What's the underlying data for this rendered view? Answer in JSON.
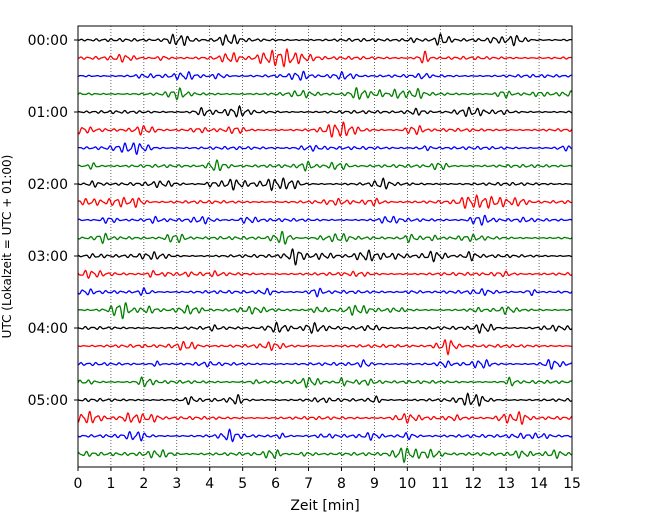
{
  "chart_data": {
    "type": "line",
    "title": "",
    "xlabel": "Zeit  [min]",
    "ylabel": "UTC (Lokalzeit = UTC + 01:00)",
    "xlim": [
      0,
      15
    ],
    "x_ticks": [
      0,
      1,
      2,
      3,
      4,
      5,
      6,
      7,
      8,
      9,
      10,
      11,
      12,
      13,
      14,
      15
    ],
    "x_tick_labels": [
      "0",
      "1",
      "2",
      "3",
      "4",
      "5",
      "6",
      "7",
      "8",
      "9",
      "10",
      "11",
      "12",
      "13",
      "14",
      "15"
    ],
    "y_tick_labels": [
      "00:00",
      "01:00",
      "02:00",
      "03:00",
      "04:00",
      "05:00"
    ],
    "grid": "vertical dotted",
    "trace_interval_minutes": 15,
    "trace_count": 24,
    "trace_colors": [
      "#000000",
      "#ff0000",
      "#0000ff",
      "#008000"
    ],
    "trace_start_times": [
      "00:00",
      "00:15",
      "00:30",
      "00:45",
      "01:00",
      "01:15",
      "01:30",
      "01:45",
      "02:00",
      "02:15",
      "02:30",
      "02:45",
      "03:00",
      "03:15",
      "03:30",
      "03:45",
      "04:00",
      "04:15",
      "04:30",
      "04:45",
      "05:00",
      "05:15",
      "05:30",
      "05:45"
    ]
  }
}
